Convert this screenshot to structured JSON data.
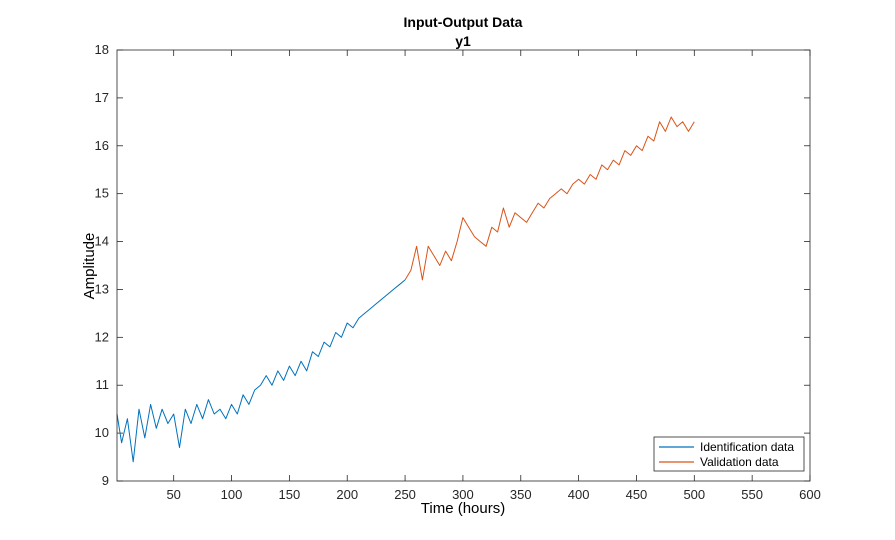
{
  "chart_data": {
    "type": "line",
    "title": "Input-Output Data",
    "subtitle": "y1",
    "xlabel": "Time (hours)",
    "ylabel": "Amplitude",
    "xlim": [
      1,
      600
    ],
    "ylim": [
      9,
      18
    ],
    "xticks": [
      50,
      100,
      150,
      200,
      250,
      300,
      350,
      400,
      450,
      500,
      550,
      600
    ],
    "yticks": [
      9,
      10,
      11,
      12,
      13,
      14,
      15,
      16,
      17,
      18
    ],
    "grid": false,
    "legend_position": "bottom-right",
    "series": [
      {
        "name": "Identification data",
        "color": "#0072BD",
        "x": [
          1,
          5,
          10,
          15,
          20,
          25,
          30,
          35,
          40,
          45,
          50,
          55,
          60,
          65,
          70,
          75,
          80,
          85,
          90,
          95,
          100,
          105,
          110,
          115,
          120,
          125,
          130,
          135,
          140,
          145,
          150,
          155,
          160,
          165,
          170,
          175,
          180,
          185,
          190,
          195,
          200,
          205,
          210,
          215,
          220,
          225,
          230,
          235,
          240,
          245,
          250
        ],
        "y": [
          10.4,
          9.8,
          10.3,
          9.4,
          10.5,
          9.9,
          10.6,
          10.1,
          10.5,
          10.2,
          10.4,
          9.7,
          10.5,
          10.2,
          10.6,
          10.3,
          10.7,
          10.4,
          10.5,
          10.3,
          10.6,
          10.4,
          10.8,
          10.6,
          10.9,
          11.0,
          11.2,
          11.0,
          11.3,
          11.1,
          11.4,
          11.2,
          11.5,
          11.3,
          11.7,
          11.6,
          11.9,
          11.8,
          12.1,
          12.0,
          12.3,
          12.2,
          12.4,
          12.5,
          12.6,
          12.7,
          12.8,
          12.9,
          13.0,
          13.1,
          13.2
        ]
      },
      {
        "name": "Validation data",
        "color": "#D95319",
        "x": [
          250,
          255,
          260,
          265,
          270,
          275,
          280,
          285,
          290,
          295,
          300,
          305,
          310,
          315,
          320,
          325,
          330,
          335,
          340,
          345,
          350,
          355,
          360,
          365,
          370,
          375,
          380,
          385,
          390,
          395,
          400,
          405,
          410,
          415,
          420,
          425,
          430,
          435,
          440,
          445,
          450,
          455,
          460,
          465,
          470,
          475,
          480,
          485,
          490,
          495,
          500
        ],
        "y": [
          13.2,
          13.4,
          13.9,
          13.2,
          13.9,
          13.7,
          13.5,
          13.8,
          13.6,
          14.0,
          14.5,
          14.3,
          14.1,
          14.0,
          13.9,
          14.3,
          14.2,
          14.7,
          14.3,
          14.6,
          14.5,
          14.4,
          14.6,
          14.8,
          14.7,
          14.9,
          15.0,
          15.1,
          15.0,
          15.2,
          15.3,
          15.2,
          15.4,
          15.3,
          15.6,
          15.5,
          15.7,
          15.6,
          15.9,
          15.8,
          16.0,
          15.9,
          16.2,
          16.1,
          16.5,
          16.3,
          16.6,
          16.4,
          16.5,
          16.3,
          16.5
        ]
      }
    ]
  }
}
